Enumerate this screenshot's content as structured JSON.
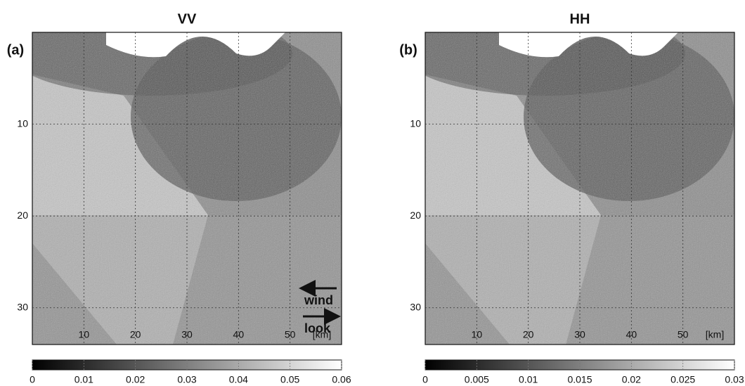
{
  "chart_data": [
    {
      "type": "image",
      "title": "VV",
      "panel_label": "(a)",
      "xlim": [
        0,
        60
      ],
      "xticks": [
        10,
        20,
        30,
        40,
        50
      ],
      "x_unit_label": "[km]",
      "ylim": [
        0,
        34
      ],
      "yticks": [
        10,
        20,
        30
      ],
      "grid": true,
      "colormap": [
        "#000000",
        "#ffffff"
      ],
      "colorbar": {
        "lim": [
          0,
          0.06
        ],
        "ticks": [
          0,
          0.01,
          0.02,
          0.03,
          0.04,
          0.05,
          0.06
        ]
      },
      "annotations": [
        "wind",
        "look"
      ]
    },
    {
      "type": "image",
      "title": "HH",
      "panel_label": "(b)",
      "xlim": [
        0,
        60
      ],
      "xticks": [
        10,
        20,
        30,
        40,
        50
      ],
      "x_unit_label": "[km]",
      "ylim": [
        0,
        34
      ],
      "yticks": [
        10,
        20,
        30
      ],
      "grid": true,
      "colormap": [
        "#000000",
        "#ffffff"
      ],
      "colorbar": {
        "lim": [
          0,
          0.03
        ],
        "ticks": [
          0,
          0.005,
          0.01,
          0.015,
          0.02,
          0.025,
          0.03
        ]
      }
    }
  ]
}
